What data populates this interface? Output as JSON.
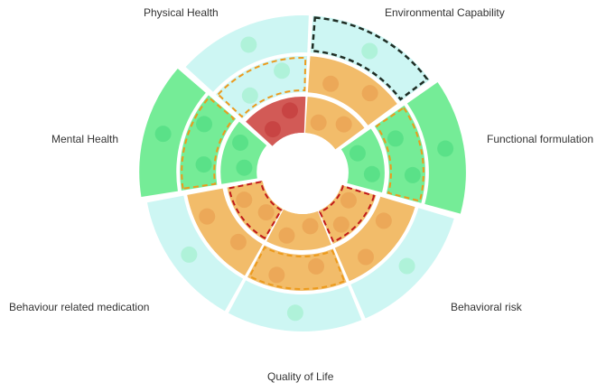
{
  "labels": {
    "physical_health": "Physical Health",
    "environmental_capability": "Environmental Capability",
    "functional_formulation": "Functional formulation",
    "behavioral_risk": "Behavioral risk",
    "quality_of_life": "Quality of Life",
    "behaviour_related_medication": "Behaviour related medication",
    "mental_health": "Mental Health"
  },
  "colors": {
    "cyan": "#cdf6f3",
    "green": "#75ec97",
    "orange": "#f2bc6a",
    "red": "#d25a56",
    "dot_light": "#a9f1d4",
    "dot_green": "#56df85",
    "dot_orange": "#eba555",
    "dot_red": "#c7413f",
    "dash_orange": "#ec9a1c",
    "dash_red": "#c0191a",
    "dash_black": "#1f2d24"
  },
  "chart_data": {
    "type": "radial-segment-diagram",
    "sectors": [
      {
        "name": "Physical Health",
        "outer": "cyan",
        "middle": "orange",
        "inner": "orange",
        "outer_dashed": "black"
      },
      {
        "name": "Environmental Capability",
        "outer": "green",
        "middle": "green",
        "inner": "green",
        "middle_dashed": "orange"
      },
      {
        "name": "Functional formulation",
        "outer": "cyan",
        "middle": "orange",
        "inner": "orange",
        "inner_dashed": "red"
      },
      {
        "name": "Behavioral risk",
        "outer": "cyan",
        "middle": "orange",
        "inner": "orange",
        "middle_dashed": "orange"
      },
      {
        "name": "Quality of Life",
        "outer": "cyan",
        "middle": "orange",
        "inner": "orange",
        "inner_dashed": "red"
      },
      {
        "name": "Behaviour related medication",
        "outer": "green",
        "middle": "green",
        "inner": "green",
        "middle_dashed": "orange"
      },
      {
        "name": "Mental Health",
        "outer": "cyan",
        "middle": "cyan",
        "inner": "red",
        "middle_dashed": "orange"
      }
    ]
  }
}
